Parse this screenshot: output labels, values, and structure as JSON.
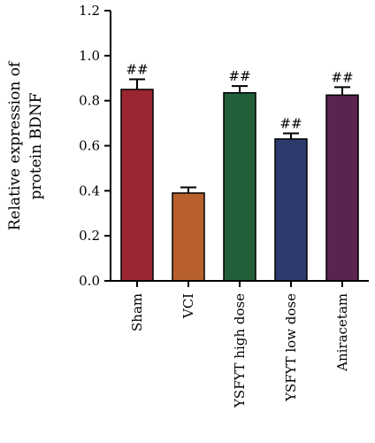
{
  "chart_data": {
    "type": "bar",
    "ylabel_lines": [
      "Relative expression of",
      "protein BDNF"
    ],
    "xlabel": "",
    "ylim": [
      0,
      1.2
    ],
    "yticks": [
      "0.0",
      "0.2",
      "0.4",
      "0.6",
      "0.8",
      "1.0",
      "1.2"
    ],
    "grid": false,
    "categories": [
      "Sham",
      "VCI",
      "YSFYT high dose",
      "YSFYT low dose",
      "Aniracetam"
    ],
    "values": [
      0.85,
      0.39,
      0.835,
      0.63,
      0.825
    ],
    "errors": [
      0.045,
      0.025,
      0.03,
      0.025,
      0.035
    ],
    "annotations": [
      "##",
      "",
      "##",
      "##",
      "##"
    ],
    "colors": [
      "#9b2532",
      "#b8612f",
      "#23603a",
      "#2d3a6d",
      "#5a2350"
    ]
  }
}
